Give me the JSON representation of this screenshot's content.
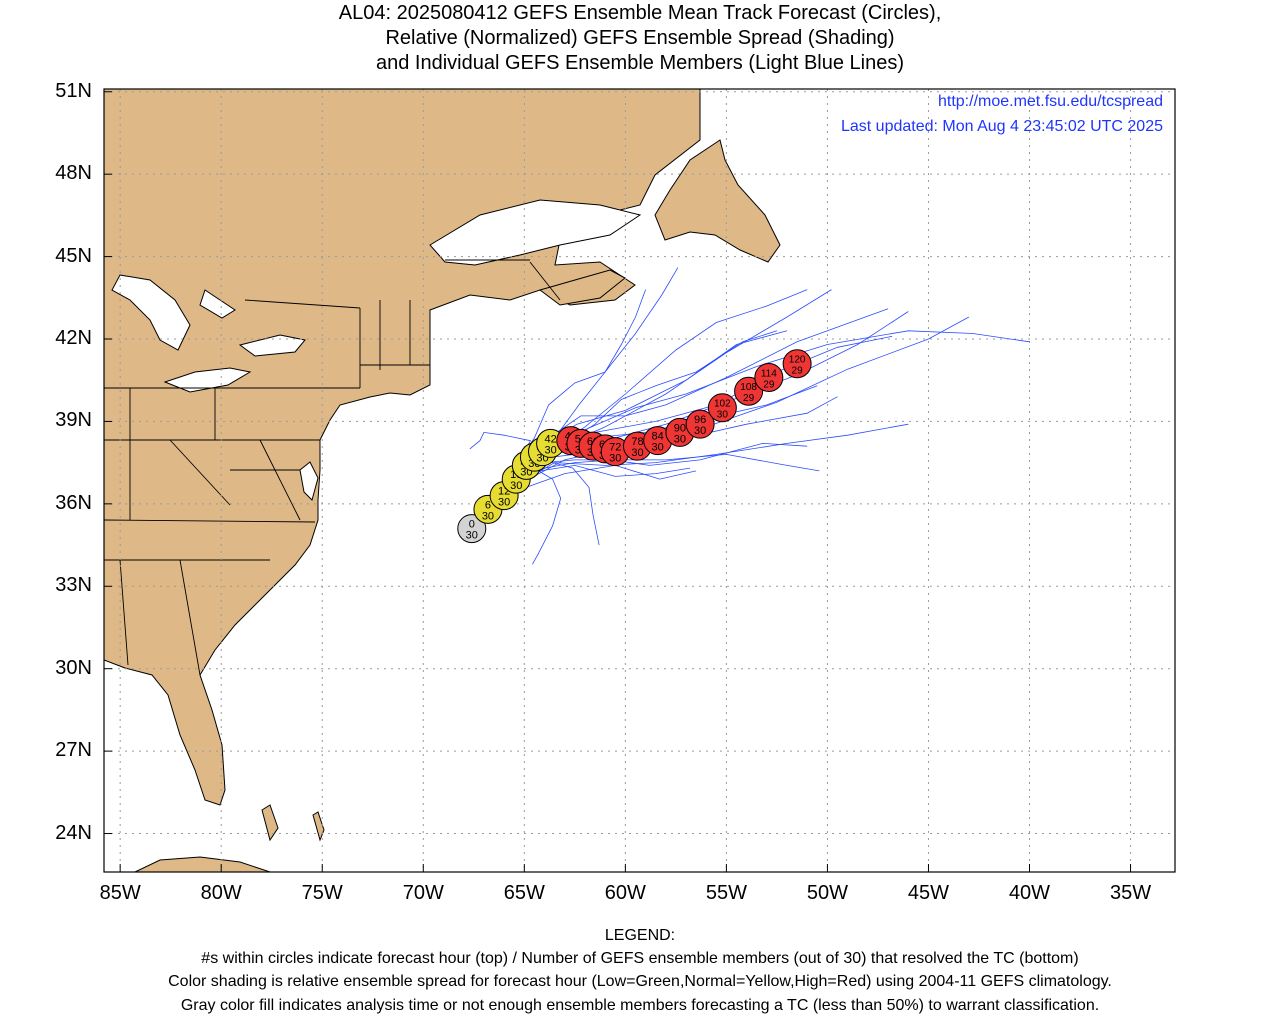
{
  "title_lines": [
    "AL04: 2025080412 GEFS Ensemble Mean Track Forecast (Circles),",
    "Relative (Normalized) GEFS Ensemble Spread (Shading)",
    "and Individual GEFS Ensemble Members (Light Blue Lines)"
  ],
  "url": "http://moe.met.fsu.edu/tcspread",
  "last_updated": "Last updated: Mon Aug 4 23:45:02 UTC 2025",
  "colors": {
    "land": "#deb887",
    "water": "#ffffff",
    "members": "#2b4cff",
    "grid": "#9a9a9a",
    "info_text": "#1f35ff",
    "gray": "#d3d3d3",
    "yellow": "#e6dc32",
    "red": "#f03535"
  },
  "map": {
    "lon_range": [
      -85.8,
      -32.8
    ],
    "lat_range": [
      22.6,
      51.1
    ],
    "lat_ticks": [
      {
        "value": 51,
        "label": "51N"
      },
      {
        "value": 48,
        "label": "48N"
      },
      {
        "value": 45,
        "label": "45N"
      },
      {
        "value": 42,
        "label": "42N"
      },
      {
        "value": 39,
        "label": "39N"
      },
      {
        "value": 36,
        "label": "36N"
      },
      {
        "value": 33,
        "label": "33N"
      },
      {
        "value": 30,
        "label": "30N"
      },
      {
        "value": 27,
        "label": "27N"
      },
      {
        "value": 24,
        "label": "24N"
      }
    ],
    "lon_ticks": [
      {
        "value": -85,
        "label": "85W"
      },
      {
        "value": -80,
        "label": "80W"
      },
      {
        "value": -75,
        "label": "75W"
      },
      {
        "value": -70,
        "label": "70W"
      },
      {
        "value": -65,
        "label": "65W"
      },
      {
        "value": -60,
        "label": "60W"
      },
      {
        "value": -55,
        "label": "55W"
      },
      {
        "value": -50,
        "label": "50W"
      },
      {
        "value": -45,
        "label": "45W"
      },
      {
        "value": -40,
        "label": "40W"
      },
      {
        "value": -35,
        "label": "35W"
      }
    ]
  },
  "track_points": [
    {
      "hour": "0",
      "members": "30",
      "lon": -67.6,
      "lat": 35.1,
      "spread": "gray"
    },
    {
      "hour": "6",
      "members": "30",
      "lon": -66.8,
      "lat": 35.8,
      "spread": "yellow"
    },
    {
      "hour": "12",
      "members": "30",
      "lon": -66.0,
      "lat": 36.3,
      "spread": "yellow"
    },
    {
      "hour": "18",
      "members": "30",
      "lon": -65.4,
      "lat": 36.9,
      "spread": "yellow"
    },
    {
      "hour": "24",
      "members": "30",
      "lon": -64.9,
      "lat": 37.4,
      "spread": "yellow"
    },
    {
      "hour": "30",
      "members": "30",
      "lon": -64.5,
      "lat": 37.7,
      "spread": "yellow"
    },
    {
      "hour": "36",
      "members": "30",
      "lon": -64.1,
      "lat": 37.9,
      "spread": "yellow"
    },
    {
      "hour": "42",
      "members": "30",
      "lon": -63.7,
      "lat": 38.2,
      "spread": "yellow"
    },
    {
      "hour": "48",
      "members": "30",
      "lon": -62.7,
      "lat": 38.3,
      "spread": "red"
    },
    {
      "hour": "54",
      "members": "30",
      "lon": -62.2,
      "lat": 38.2,
      "spread": "red"
    },
    {
      "hour": "60",
      "members": "30",
      "lon": -61.6,
      "lat": 38.1,
      "spread": "red"
    },
    {
      "hour": "66",
      "members": "30",
      "lon": -61.0,
      "lat": 38.0,
      "spread": "red"
    },
    {
      "hour": "72",
      "members": "30",
      "lon": -60.5,
      "lat": 37.9,
      "spread": "red"
    },
    {
      "hour": "78",
      "members": "30",
      "lon": -59.4,
      "lat": 38.1,
      "spread": "red"
    },
    {
      "hour": "84",
      "members": "30",
      "lon": -58.4,
      "lat": 38.3,
      "spread": "red"
    },
    {
      "hour": "90",
      "members": "30",
      "lon": -57.3,
      "lat": 38.6,
      "spread": "red"
    },
    {
      "hour": "96",
      "members": "30",
      "lon": -56.3,
      "lat": 38.9,
      "spread": "red"
    },
    {
      "hour": "102",
      "members": "30",
      "lon": -55.2,
      "lat": 39.5,
      "spread": "red"
    },
    {
      "hour": "108",
      "members": "29",
      "lon": -53.9,
      "lat": 40.1,
      "spread": "red"
    },
    {
      "hour": "114",
      "members": "29",
      "lon": -52.9,
      "lat": 40.6,
      "spread": "red"
    },
    {
      "hour": "120",
      "members": "29",
      "lon": -51.5,
      "lat": 41.1,
      "spread": "red"
    }
  ],
  "member_tracks": [
    [
      [
        -67.6,
        35.1
      ],
      [
        -65.5,
        37.0
      ],
      [
        -63.5,
        38.0
      ],
      [
        -61.0,
        38.8
      ],
      [
        -58.0,
        40.0
      ],
      [
        -55.0,
        41.5
      ],
      [
        -52.0,
        42.8
      ],
      [
        -49.8,
        43.8
      ]
    ],
    [
      [
        -67.6,
        35.1
      ],
      [
        -65.8,
        36.8
      ],
      [
        -64.0,
        37.8
      ],
      [
        -62.0,
        38.8
      ],
      [
        -60.0,
        40.0
      ],
      [
        -57.5,
        41.6
      ],
      [
        -55.5,
        42.6
      ],
      [
        -53.0,
        43.2
      ],
      [
        -51.0,
        43.8
      ]
    ],
    [
      [
        -67.6,
        35.1
      ],
      [
        -65.6,
        36.9
      ],
      [
        -63.8,
        38.1
      ],
      [
        -62.3,
        39.6
      ],
      [
        -61.0,
        40.8
      ],
      [
        -60.2,
        41.8
      ],
      [
        -59.5,
        42.8
      ],
      [
        -59.0,
        43.8
      ]
    ],
    [
      [
        -67.6,
        35.1
      ],
      [
        -65.7,
        36.9
      ],
      [
        -64.1,
        37.8
      ],
      [
        -62.5,
        38.3
      ],
      [
        -60.5,
        38.4
      ],
      [
        -58.0,
        38.9
      ],
      [
        -55.0,
        39.7
      ],
      [
        -51.5,
        40.7
      ],
      [
        -48.5,
        41.8
      ],
      [
        -46.0,
        43.0
      ]
    ],
    [
      [
        -67.6,
        35.1
      ],
      [
        -65.5,
        36.8
      ],
      [
        -63.6,
        37.7
      ],
      [
        -61.5,
        37.9
      ],
      [
        -59.0,
        38.2
      ],
      [
        -56.0,
        38.8
      ],
      [
        -52.5,
        39.7
      ],
      [
        -49.0,
        40.9
      ],
      [
        -45.0,
        42.0
      ],
      [
        -43.0,
        42.8
      ]
    ],
    [
      [
        -67.6,
        35.1
      ],
      [
        -65.4,
        36.7
      ],
      [
        -63.5,
        37.5
      ],
      [
        -61.0,
        37.4
      ],
      [
        -58.5,
        37.5
      ],
      [
        -55.5,
        37.8
      ],
      [
        -52.0,
        38.2
      ],
      [
        -49.0,
        38.5
      ],
      [
        -46.0,
        38.9
      ]
    ],
    [
      [
        -67.6,
        35.1
      ],
      [
        -65.6,
        36.6
      ],
      [
        -64.2,
        37.2
      ],
      [
        -62.5,
        37.4
      ],
      [
        -60.5,
        37.0
      ],
      [
        -58.5,
        37.1
      ],
      [
        -56.8,
        37.3
      ]
    ],
    [
      [
        -67.6,
        35.1
      ],
      [
        -65.5,
        36.9
      ],
      [
        -63.7,
        37.9
      ],
      [
        -61.6,
        38.4
      ],
      [
        -59.0,
        38.6
      ],
      [
        -56.0,
        39.1
      ],
      [
        -53.0,
        39.6
      ],
      [
        -50.5,
        40.3
      ]
    ],
    [
      [
        -67.6,
        35.1
      ],
      [
        -65.8,
        36.9
      ],
      [
        -64.3,
        38.0
      ],
      [
        -62.4,
        38.9
      ],
      [
        -60.0,
        39.4
      ],
      [
        -57.0,
        40.5
      ],
      [
        -54.5,
        41.8
      ],
      [
        -52.0,
        42.3
      ]
    ],
    [
      [
        -67.6,
        35.1
      ],
      [
        -65.6,
        37.0
      ],
      [
        -64.0,
        38.3
      ],
      [
        -62.2,
        39.2
      ],
      [
        -60.0,
        39.2
      ],
      [
        -58.0,
        39.6
      ],
      [
        -55.0,
        40.6
      ],
      [
        -51.5,
        41.9
      ],
      [
        -47.0,
        43.1
      ]
    ],
    [
      [
        -67.6,
        35.1
      ],
      [
        -65.6,
        36.7
      ],
      [
        -64.0,
        37.5
      ],
      [
        -62.5,
        37.6
      ],
      [
        -60.7,
        37.6
      ],
      [
        -58.8,
        37.4
      ],
      [
        -56.3,
        37.6
      ],
      [
        -53.2,
        38.2
      ],
      [
        -51.0,
        38.1
      ]
    ],
    [
      [
        -67.6,
        35.1
      ],
      [
        -65.5,
        36.6
      ],
      [
        -64.3,
        37.2
      ],
      [
        -63.6,
        36.9
      ],
      [
        -63.2,
        36.2
      ],
      [
        -63.6,
        35.2
      ],
      [
        -64.3,
        34.2
      ],
      [
        -64.6,
        33.8
      ]
    ],
    [
      [
        -67.6,
        35.1
      ],
      [
        -65.6,
        36.8
      ],
      [
        -64.1,
        37.6
      ],
      [
        -62.6,
        37.3
      ],
      [
        -61.8,
        36.6
      ],
      [
        -61.6,
        35.6
      ],
      [
        -61.3,
        34.5
      ]
    ],
    [
      [
        -67.6,
        35.1
      ],
      [
        -65.4,
        36.6
      ],
      [
        -64.0,
        37.3
      ],
      [
        -62.5,
        37.5
      ],
      [
        -60.5,
        37.6
      ],
      [
        -58.0,
        37.6
      ],
      [
        -55.0,
        37.8
      ],
      [
        -52.0,
        37.4
      ],
      [
        -50.4,
        37.2
      ]
    ],
    [
      [
        -67.6,
        35.1
      ],
      [
        -65.8,
        37.0
      ],
      [
        -64.5,
        38.4
      ],
      [
        -63.8,
        39.6
      ],
      [
        -62.5,
        40.4
      ],
      [
        -61.0,
        40.8
      ],
      [
        -59.5,
        42.2
      ],
      [
        -58.2,
        43.6
      ],
      [
        -57.4,
        44.6
      ]
    ],
    [
      [
        -67.6,
        35.1
      ],
      [
        -65.5,
        37.2
      ],
      [
        -64.7,
        38.3
      ],
      [
        -66.0,
        38.5
      ],
      [
        -67.0,
        38.6
      ],
      [
        -67.2,
        38.3
      ],
      [
        -67.7,
        38.0
      ]
    ],
    [
      [
        -67.6,
        35.1
      ],
      [
        -65.3,
        36.7
      ],
      [
        -63.0,
        37.6
      ],
      [
        -60.0,
        38.1
      ],
      [
        -57.0,
        38.4
      ],
      [
        -54.0,
        38.9
      ],
      [
        -51.0,
        39.3
      ],
      [
        -49.5,
        39.9
      ]
    ],
    [
      [
        -67.6,
        35.1
      ],
      [
        -65.7,
        37.0
      ],
      [
        -64.2,
        38.1
      ],
      [
        -62.0,
        38.7
      ],
      [
        -59.5,
        39.5
      ],
      [
        -57.0,
        40.0
      ],
      [
        -53.5,
        41.0
      ],
      [
        -50.0,
        41.8
      ],
      [
        -46.0,
        42.3
      ],
      [
        -42.8,
        42.2
      ],
      [
        -40.0,
        41.9
      ]
    ],
    [
      [
        -67.6,
        35.1
      ],
      [
        -65.6,
        36.9
      ],
      [
        -63.8,
        37.9
      ],
      [
        -61.5,
        38.6
      ],
      [
        -58.5,
        39.0
      ],
      [
        -55.5,
        39.6
      ],
      [
        -52.5,
        40.8
      ],
      [
        -49.5,
        41.7
      ],
      [
        -46.8,
        42.1
      ]
    ],
    [
      [
        -67.6,
        35.1
      ],
      [
        -65.3,
        36.5
      ],
      [
        -63.0,
        37.1
      ],
      [
        -60.5,
        37.4
      ],
      [
        -58.3,
        36.9
      ],
      [
        -56.5,
        37.2
      ]
    ],
    [
      [
        -67.6,
        35.1
      ],
      [
        -65.7,
        36.8
      ],
      [
        -64.2,
        37.7
      ],
      [
        -62.8,
        38.3
      ],
      [
        -61.5,
        38.9
      ],
      [
        -60.2,
        39.8
      ],
      [
        -58.5,
        40.3
      ],
      [
        -56.5,
        40.8
      ],
      [
        -54.2,
        41.9
      ],
      [
        -52.5,
        42.3
      ]
    ],
    [
      [
        -67.6,
        35.1
      ],
      [
        -65.5,
        36.9
      ],
      [
        -63.9,
        37.8
      ],
      [
        -61.8,
        38.0
      ],
      [
        -59.5,
        38.1
      ],
      [
        -57.5,
        38.5
      ],
      [
        -56.0,
        38.8
      ]
    ]
  ],
  "legend": {
    "heading": "LEGEND:",
    "lines": [
      "#s within circles indicate forecast hour (top) / Number of GEFS ensemble members (out of 30) that resolved the TC (bottom)",
      "Color shading is relative ensemble spread for forecast hour (Low=Green,Normal=Yellow,High=Red) using 2004-11 GEFS climatology.",
      "Gray color fill indicates analysis time or not enough ensemble members forecasting a TC (less than 50%) to warrant classification."
    ]
  }
}
